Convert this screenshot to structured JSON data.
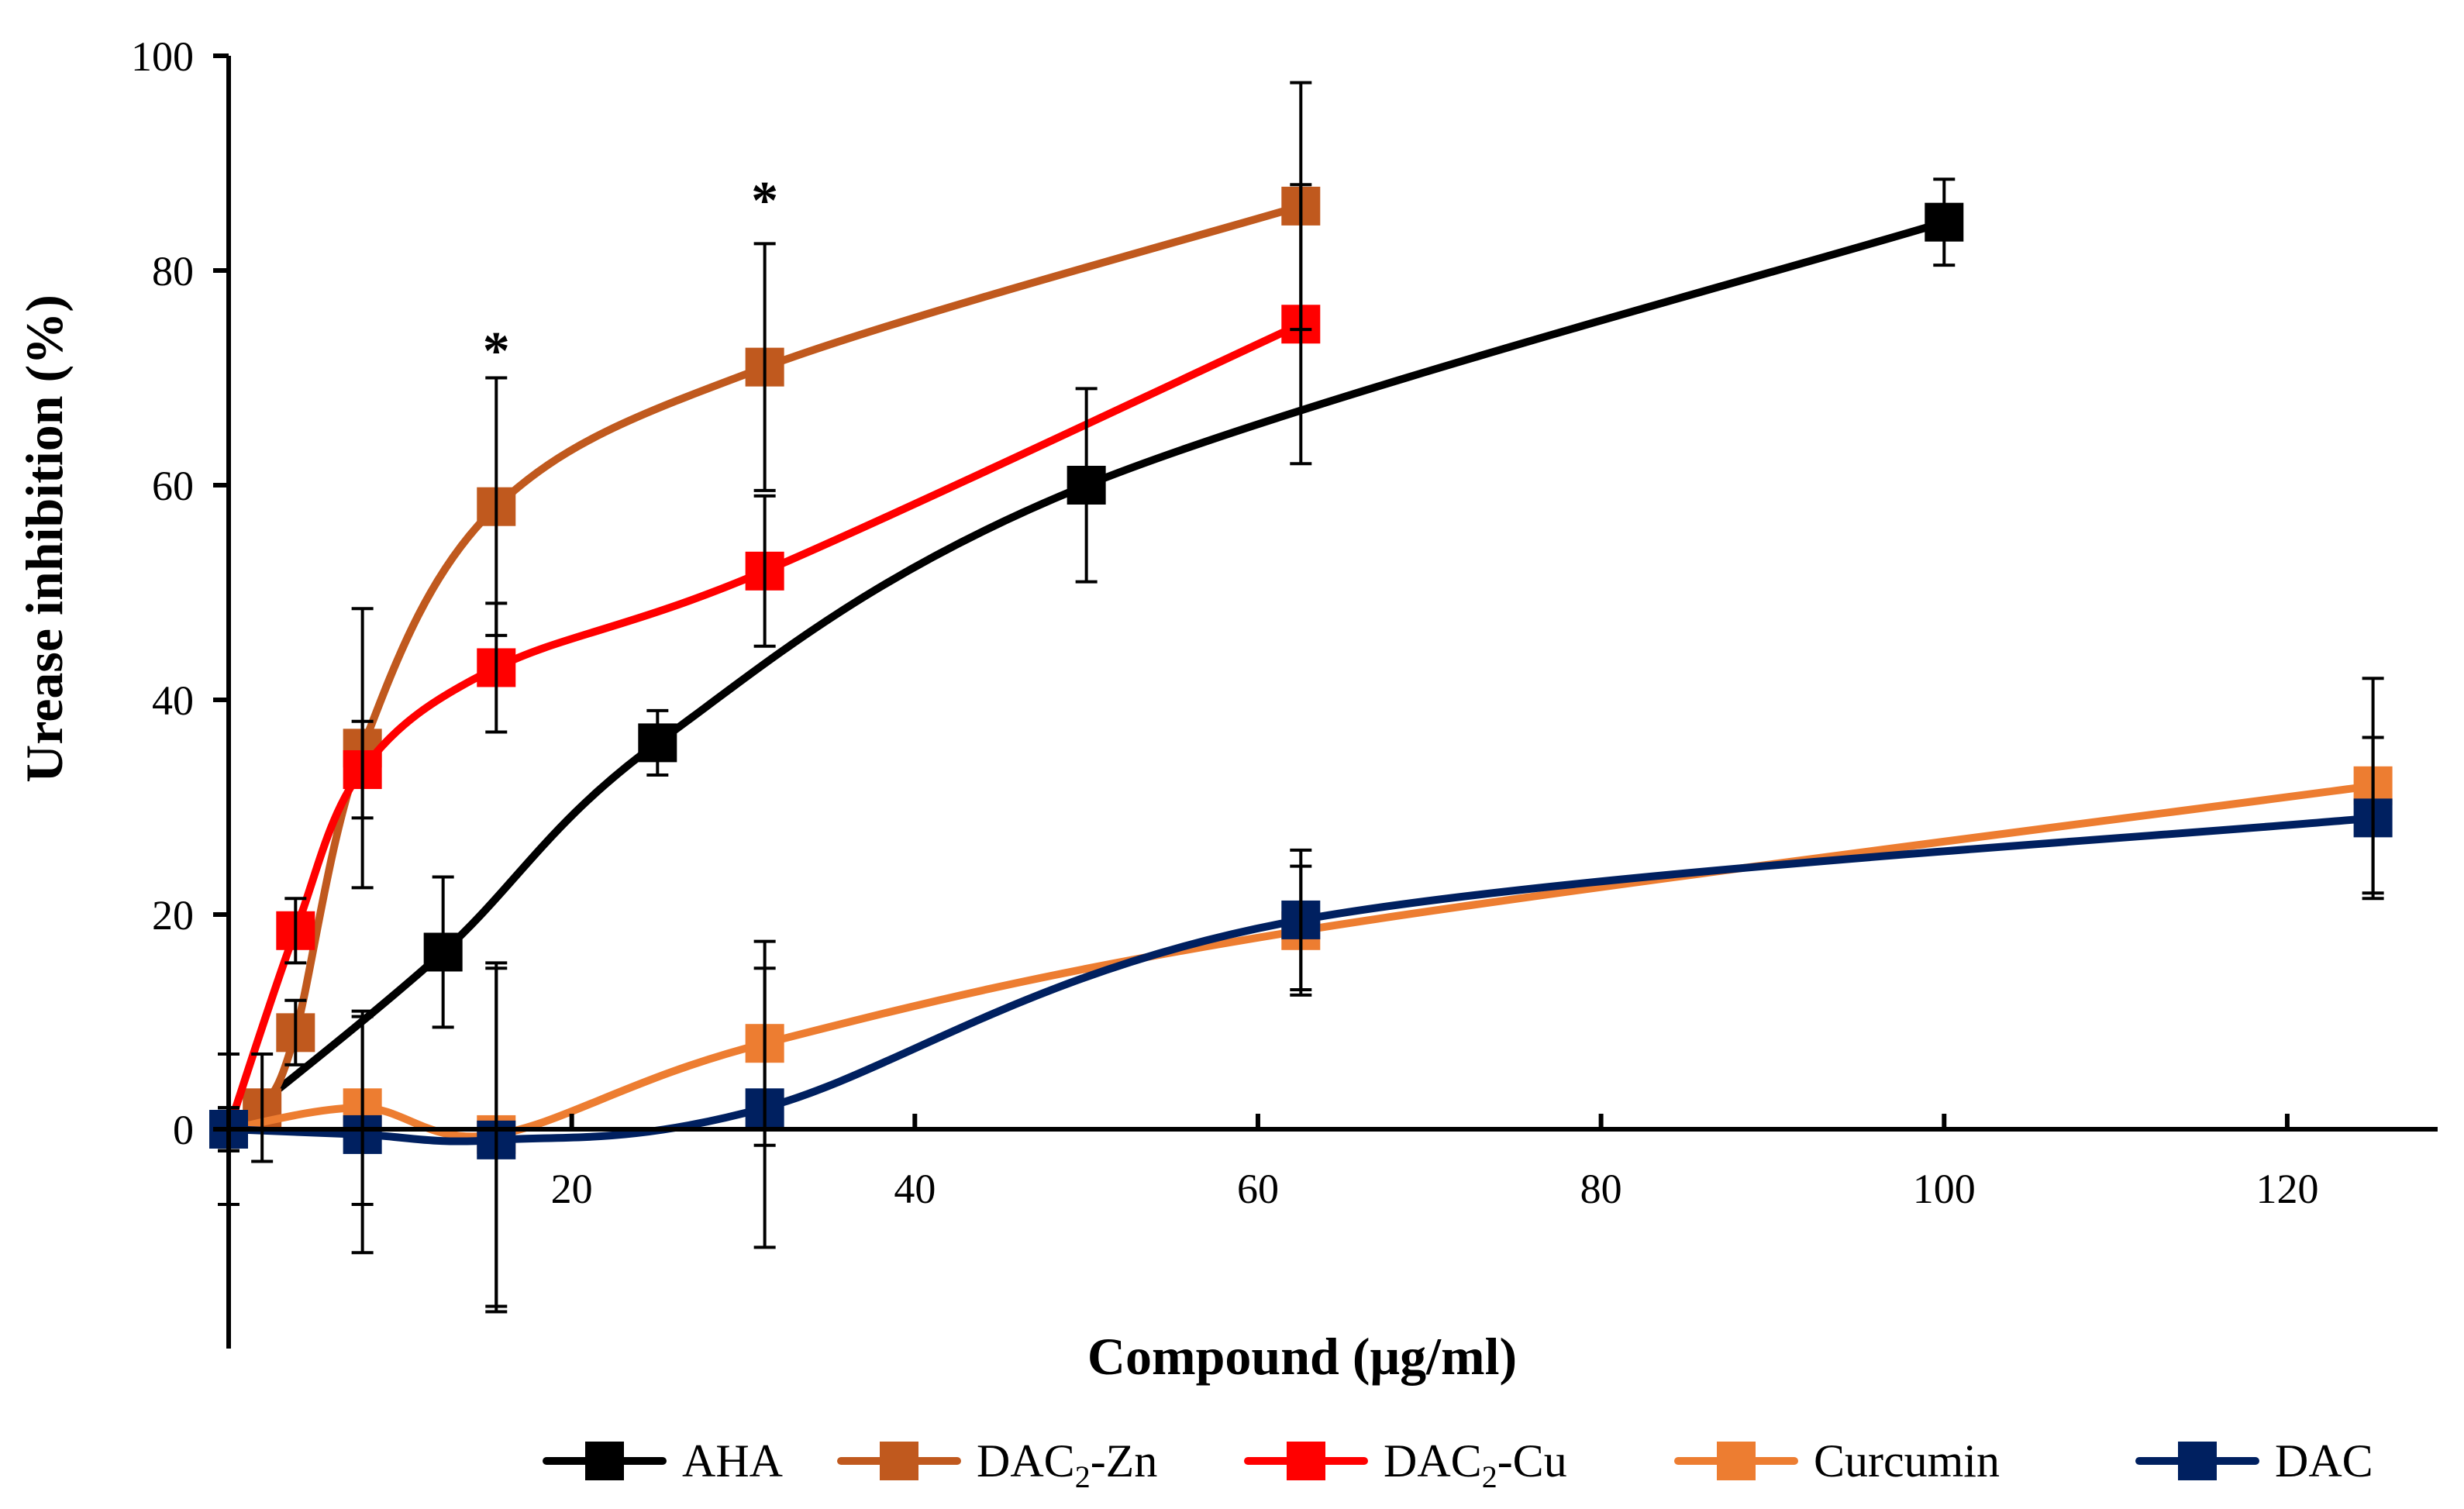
{
  "chart_data": {
    "type": "line",
    "title": "",
    "xlabel": "Compound (μg/ml)",
    "ylabel": "Urease inhibition (%)",
    "xlim": [
      0,
      128
    ],
    "ylim": [
      -20,
      100
    ],
    "x_ticks": [
      20,
      40,
      60,
      80,
      100,
      120
    ],
    "y_ticks": [
      0,
      20,
      40,
      60,
      80,
      100
    ],
    "grid": false,
    "legend_position": "bottom",
    "series": [
      {
        "name": "AHA",
        "label_main": "AHA",
        "label_sub": "",
        "label_tail": "",
        "color": "#000000",
        "points": [
          {
            "x": 0,
            "y": 0,
            "err": 7
          },
          {
            "x": 12.5,
            "y": 16.5,
            "err": 7
          },
          {
            "x": 25,
            "y": 36,
            "err": 3
          },
          {
            "x": 50,
            "y": 60,
            "err": 9
          },
          {
            "x": 100,
            "y": 84.5,
            "err": 4
          }
        ]
      },
      {
        "name": "DAC2-Zn",
        "label_main": "DAC",
        "label_sub": "2",
        "label_tail": "-Zn",
        "color": "#C0591E",
        "points": [
          {
            "x": 0,
            "y": 0,
            "err": 2
          },
          {
            "x": 1.95,
            "y": 2,
            "err": 5
          },
          {
            "x": 3.9,
            "y": 9,
            "err": 3
          },
          {
            "x": 7.8,
            "y": 35.5,
            "err": 13
          },
          {
            "x": 15.6,
            "y": 58,
            "err": 12
          },
          {
            "x": 31.25,
            "y": 71,
            "err": 11.5
          },
          {
            "x": 62.5,
            "y": 86,
            "err": 11.5
          }
        ]
      },
      {
        "name": "DAC2-Cu",
        "label_main": "DAC",
        "label_sub": "2",
        "label_tail": "-Cu",
        "color": "#FF0000",
        "points": [
          {
            "x": 0,
            "y": 0,
            "err": 2
          },
          {
            "x": 3.9,
            "y": 18.5,
            "err": 3
          },
          {
            "x": 7.8,
            "y": 33.5,
            "err": 4.5
          },
          {
            "x": 15.6,
            "y": 43,
            "err": 6
          },
          {
            "x": 31.25,
            "y": 52,
            "err": 7
          },
          {
            "x": 62.5,
            "y": 75,
            "err": 13
          }
        ]
      },
      {
        "name": "Curcumin",
        "label_main": "Curcumin",
        "label_sub": "",
        "label_tail": "",
        "color": "#ED7D31",
        "points": [
          {
            "x": 0,
            "y": 0,
            "err": 2
          },
          {
            "x": 7.8,
            "y": 2,
            "err": 9
          },
          {
            "x": 15.6,
            "y": -0.5,
            "err": 16
          },
          {
            "x": 31.25,
            "y": 8,
            "err": 9.5
          },
          {
            "x": 62.5,
            "y": 18.5,
            "err": 6
          },
          {
            "x": 125,
            "y": 32,
            "err": 10
          }
        ]
      },
      {
        "name": "DAC",
        "label_main": "DAC",
        "label_sub": "",
        "label_tail": "",
        "color": "#002060",
        "points": [
          {
            "x": 0,
            "y": 0,
            "err": 2
          },
          {
            "x": 7.8,
            "y": -0.5,
            "err": 11
          },
          {
            "x": 15.6,
            "y": -1,
            "err": 16
          },
          {
            "x": 31.25,
            "y": 2,
            "err": 13
          },
          {
            "x": 62.5,
            "y": 19.5,
            "err": 6.5
          },
          {
            "x": 125,
            "y": 29,
            "err": 7.5
          }
        ]
      }
    ],
    "annotations": [
      {
        "text": "*",
        "x": 15.6,
        "y": 73
      },
      {
        "text": "*",
        "x": 31.25,
        "y": 87
      }
    ]
  }
}
